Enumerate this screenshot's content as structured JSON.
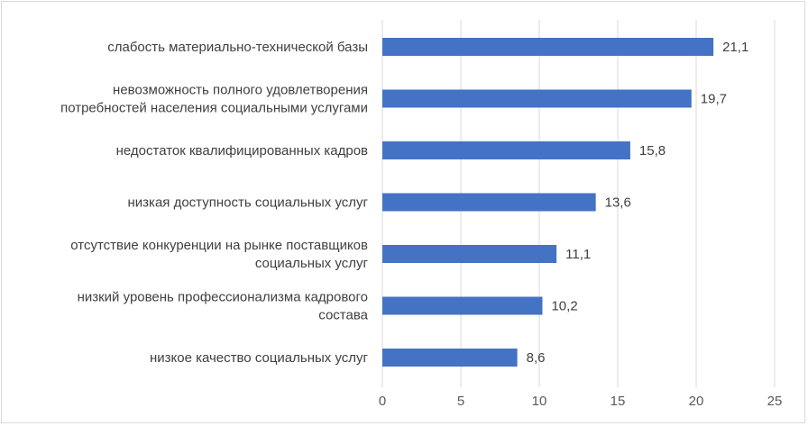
{
  "chart_data": {
    "type": "bar",
    "orientation": "horizontal",
    "categories": [
      [
        "слабость материально-технической базы"
      ],
      [
        "невозможность полного удовлетворения",
        "потребностей населения социальными услугами"
      ],
      [
        "недостаток квалифицированных кадров"
      ],
      [
        "низкая доступность социальных услуг"
      ],
      [
        "отсутствие конкуренции на рынке поставщиков",
        "социальных услуг"
      ],
      [
        "низкий уровень профессионализма кадрового",
        "состава"
      ],
      [
        "низкое качество социальных услуг"
      ]
    ],
    "values": [
      21.1,
      19.7,
      15.8,
      13.6,
      11.1,
      10.2,
      8.6
    ],
    "value_labels": [
      "21,1",
      "19,7",
      "15,8",
      "13,6",
      "11,1",
      "10,2",
      "8,6"
    ],
    "xlim": [
      0,
      25
    ],
    "xticks": [
      0,
      5,
      10,
      15,
      20,
      25
    ],
    "xtick_labels": [
      "0",
      "5",
      "10",
      "15",
      "20",
      "25"
    ],
    "grid": "vertical",
    "legend": "none",
    "bar_color": "#4472c4",
    "grid_color": "#d9d9d9",
    "title": "",
    "xlabel": "",
    "ylabel": ""
  }
}
